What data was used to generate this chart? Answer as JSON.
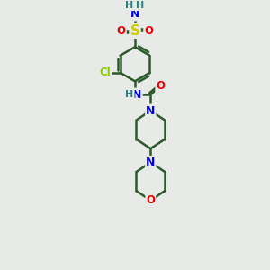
{
  "bg_color": "#e8eae8",
  "bond_color": "#2d5a2d",
  "bond_width": 1.8,
  "atom_colors": {
    "N": "#0000ee",
    "O": "#ee0000",
    "S": "#cccc00",
    "Cl": "#88cc00",
    "C": "#2d5a2d",
    "H": "#2d8080"
  },
  "font_size": 8.5
}
